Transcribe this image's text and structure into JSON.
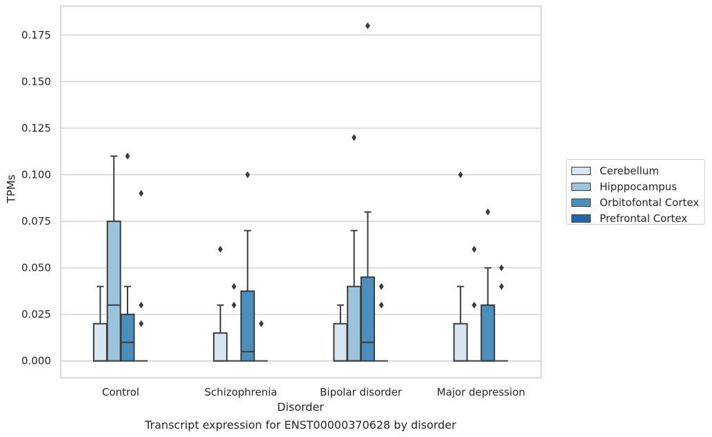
{
  "chart_data": {
    "type": "box",
    "title": "",
    "caption": "Transcript expression for ENST00000370628 by disorder",
    "xlabel": "Disorder",
    "ylabel": "TPMs",
    "ylim": [
      -0.009,
      0.1905
    ],
    "yticks": [
      0.0,
      0.025,
      0.05,
      0.075,
      0.1,
      0.125,
      0.15,
      0.175
    ],
    "ytick_labels": [
      "0.000",
      "0.025",
      "0.050",
      "0.075",
      "0.100",
      "0.125",
      "0.150",
      "0.175"
    ],
    "grid": "horizontal",
    "legend_position": "right",
    "categories": [
      "Control",
      "Schizophrenia",
      "Bipolar disorder",
      "Major depression"
    ],
    "series": [
      {
        "name": "Cerebellum",
        "color": "#d7e5f2",
        "boxes": [
          {
            "q1": 0.0,
            "median": 0.0,
            "q3": 0.02,
            "whisker_low": 0.0,
            "whisker_high": 0.04,
            "outliers": []
          },
          {
            "q1": 0.0,
            "median": 0.0,
            "q3": 0.015,
            "whisker_low": 0.0,
            "whisker_high": 0.03,
            "outliers": [
              0.06
            ]
          },
          {
            "q1": 0.0,
            "median": 0.0,
            "q3": 0.02,
            "whisker_low": 0.0,
            "whisker_high": 0.03,
            "outliers": []
          },
          {
            "q1": 0.0,
            "median": 0.0,
            "q3": 0.02,
            "whisker_low": 0.0,
            "whisker_high": 0.04,
            "outliers": [
              0.1
            ]
          }
        ]
      },
      {
        "name": "Hipppocampus",
        "color": "#9bc4dc",
        "boxes": [
          {
            "q1": 0.0,
            "median": 0.03,
            "q3": 0.075,
            "whisker_low": 0.0,
            "whisker_high": 0.11,
            "outliers": []
          },
          {
            "q1": 0.0,
            "median": 0.0,
            "q3": 0.0,
            "whisker_low": 0.0,
            "whisker_high": 0.0,
            "outliers": [
              0.03,
              0.04
            ]
          },
          {
            "q1": 0.0,
            "median": 0.0,
            "q3": 0.04,
            "whisker_low": 0.0,
            "whisker_high": 0.07,
            "outliers": [
              0.12
            ]
          },
          {
            "q1": 0.0,
            "median": 0.0,
            "q3": 0.0,
            "whisker_low": 0.0,
            "whisker_high": 0.0,
            "outliers": [
              0.03,
              0.06
            ]
          }
        ]
      },
      {
        "name": "Orbitofontal Cortex",
        "color": "#4b8fbf",
        "boxes": [
          {
            "q1": 0.0,
            "median": 0.01,
            "q3": 0.025,
            "whisker_low": 0.0,
            "whisker_high": 0.04,
            "outliers": [
              0.11
            ]
          },
          {
            "q1": 0.0,
            "median": 0.005,
            "q3": 0.0375,
            "whisker_low": 0.0,
            "whisker_high": 0.07,
            "outliers": [
              0.1
            ]
          },
          {
            "q1": 0.0,
            "median": 0.01,
            "q3": 0.045,
            "whisker_low": 0.0,
            "whisker_high": 0.08,
            "outliers": [
              0.18
            ]
          },
          {
            "q1": 0.0,
            "median": 0.0,
            "q3": 0.03,
            "whisker_low": 0.0,
            "whisker_high": 0.05,
            "outliers": [
              0.08
            ]
          }
        ]
      },
      {
        "name": "Prefrontal Cortex",
        "color": "#2166ac",
        "boxes": [
          {
            "q1": 0.0,
            "median": 0.0,
            "q3": 0.0,
            "whisker_low": 0.0,
            "whisker_high": 0.0,
            "outliers": [
              0.02,
              0.03,
              0.09
            ]
          },
          {
            "q1": 0.0,
            "median": 0.0,
            "q3": 0.0,
            "whisker_low": 0.0,
            "whisker_high": 0.0,
            "outliers": [
              0.02
            ]
          },
          {
            "q1": 0.0,
            "median": 0.0,
            "q3": 0.0,
            "whisker_low": 0.0,
            "whisker_high": 0.0,
            "outliers": [
              0.03,
              0.04
            ]
          },
          {
            "q1": 0.0,
            "median": 0.0,
            "q3": 0.0,
            "whisker_low": 0.0,
            "whisker_high": 0.0,
            "outliers": [
              0.04,
              0.05
            ]
          }
        ]
      }
    ]
  }
}
